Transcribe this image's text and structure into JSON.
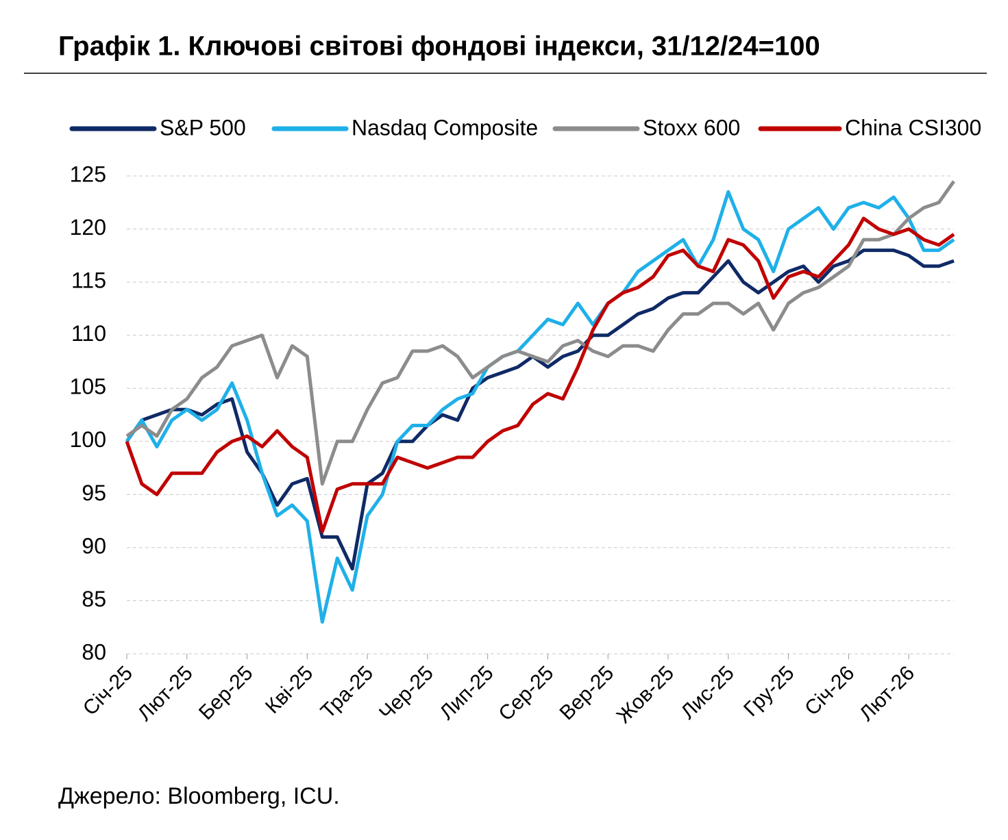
{
  "chart_data": {
    "type": "line",
    "title": "Графік 1. Ключові світові фондові індекси, 31/12/24=100",
    "source": "Джерело: Bloomberg, ICU.",
    "categories": [
      "Січ-25",
      null,
      null,
      null,
      "Лют-25",
      null,
      null,
      null,
      "Бер-25",
      null,
      null,
      null,
      "Кві-25",
      null,
      null,
      null,
      "Тра-25",
      null,
      null,
      null,
      "Чер-25",
      null,
      null,
      null,
      "Лип-25",
      null,
      null,
      null,
      "Сер-25",
      null,
      null,
      null,
      "Вер-25",
      null,
      null,
      null,
      "Жов-25",
      null,
      null,
      null,
      "Лис-25",
      null,
      null,
      null,
      "Гру-25",
      null,
      null,
      null,
      "Січ-26",
      null,
      null,
      null,
      "Лют-26",
      null,
      null,
      null
    ],
    "series": [
      {
        "name": "S&P 500",
        "color": "#0f2a66",
        "values": [
          100,
          102,
          102.5,
          103,
          103,
          102.5,
          103.5,
          104,
          99,
          97,
          94,
          96,
          96.5,
          91,
          91,
          88,
          96,
          97,
          100,
          100,
          101.5,
          102.5,
          102,
          105,
          106,
          106.5,
          107,
          108,
          107,
          108,
          108.5,
          110,
          110,
          111,
          112,
          112.5,
          113.5,
          114,
          114,
          115.5,
          117,
          115,
          114,
          115,
          116,
          116.5,
          115,
          116.5,
          117,
          118,
          118,
          118,
          117.5,
          116.5,
          116.5,
          117
        ]
      },
      {
        "name": "Nasdaq Composite",
        "color": "#1fb0e8",
        "values": [
          100,
          102,
          99.5,
          102,
          103,
          102,
          103,
          105.5,
          102,
          97,
          93,
          94,
          92.5,
          83,
          89,
          86,
          93,
          95,
          100,
          101.5,
          101.5,
          103,
          104,
          104.5,
          107,
          108,
          108.5,
          110,
          111.5,
          111,
          113,
          111,
          113,
          114,
          116,
          117,
          118,
          119,
          116.5,
          119,
          123.5,
          120,
          119,
          116,
          120,
          121,
          122,
          120,
          122,
          122.5,
          122,
          123,
          121,
          118,
          118,
          119
        ]
      },
      {
        "name": "Stoxx 600",
        "color": "#8c8c8c",
        "values": [
          100.5,
          101.5,
          100.5,
          103,
          104,
          106,
          107,
          109,
          109.5,
          110,
          106,
          109,
          108,
          96,
          100,
          100,
          103,
          105.5,
          106,
          108.5,
          108.5,
          109,
          108,
          106,
          107,
          108,
          108.5,
          108,
          107.5,
          109,
          109.5,
          108.5,
          108,
          109,
          109,
          108.5,
          110.5,
          112,
          112,
          113,
          113,
          112,
          113,
          110.5,
          113,
          114,
          114.5,
          115.5,
          116.5,
          119,
          119,
          119.5,
          121,
          122,
          122.5,
          124.5
        ]
      },
      {
        "name": "China CSI300",
        "color": "#c00000",
        "values": [
          100,
          96,
          95,
          97,
          97,
          97,
          99,
          100,
          100.5,
          99.5,
          101,
          99.5,
          98.5,
          91.5,
          95.5,
          96,
          96,
          96,
          98.5,
          98,
          97.5,
          98,
          98.5,
          98.5,
          100,
          101,
          101.5,
          103.5,
          104.5,
          104,
          107,
          110.5,
          113,
          114,
          114.5,
          115.5,
          117.5,
          118,
          116.5,
          116,
          119,
          118.5,
          117,
          113.5,
          115.5,
          116,
          115.5,
          117,
          118.5,
          121,
          120,
          119.5,
          120,
          119,
          118.5,
          119.5
        ]
      }
    ],
    "ylim": [
      80,
      125
    ],
    "yticks": [
      80,
      85,
      90,
      95,
      100,
      105,
      110,
      115,
      120,
      125
    ],
    "grid": true
  }
}
